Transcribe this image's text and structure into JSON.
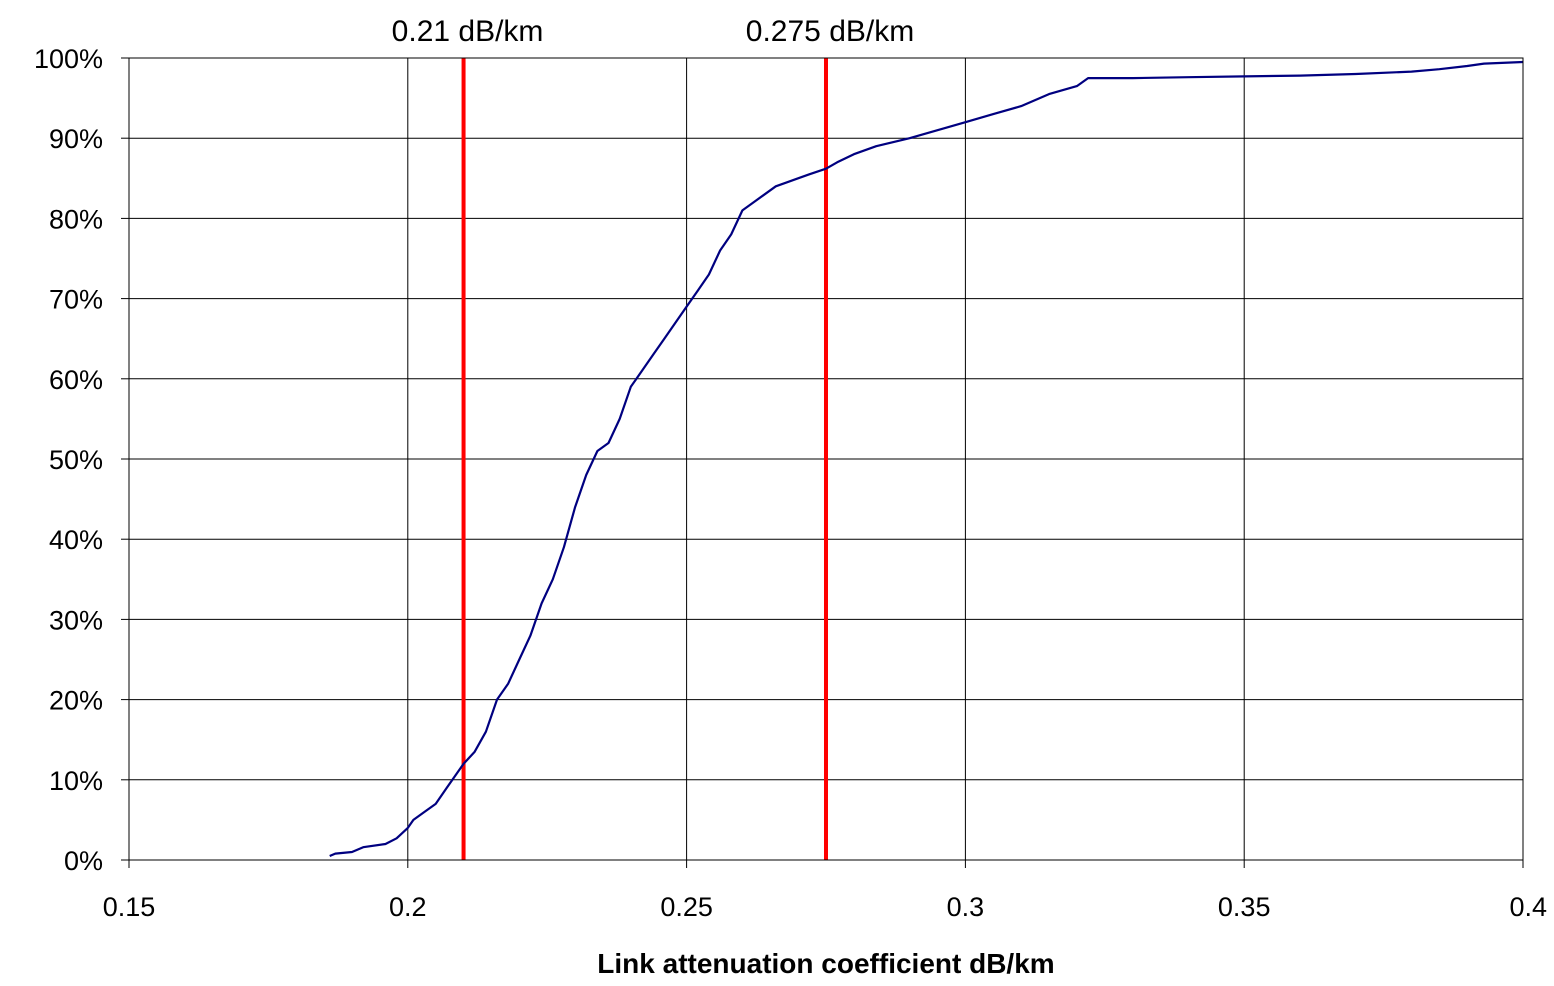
{
  "chart_data": {
    "type": "line",
    "title": "",
    "xlabel": "Link attenuation coefficient dB/km",
    "ylabel": "",
    "xlim": [
      0.15,
      0.4
    ],
    "ylim": [
      0,
      1
    ],
    "grid": true,
    "x_ticks": [
      0.15,
      0.2,
      0.25,
      0.3,
      0.35,
      0.4
    ],
    "x_tick_labels": [
      "0.15",
      "0.2",
      "0.25",
      "0.3",
      "0.35",
      "0.4"
    ],
    "y_ticks": [
      0,
      0.1,
      0.2,
      0.3,
      0.4,
      0.5,
      0.6,
      0.7,
      0.8,
      0.9,
      1.0
    ],
    "y_tick_labels": [
      "0%",
      "10%",
      "20%",
      "30%",
      "40%",
      "50%",
      "60%",
      "70%",
      "80%",
      "90%",
      "100%"
    ],
    "series": [
      {
        "color": "#000080",
        "x": [
          0.186,
          0.187,
          0.19,
          0.192,
          0.196,
          0.198,
          0.2,
          0.201,
          0.203,
          0.205,
          0.207,
          0.209,
          0.21,
          0.212,
          0.214,
          0.216,
          0.218,
          0.22,
          0.222,
          0.224,
          0.226,
          0.228,
          0.23,
          0.232,
          0.234,
          0.236,
          0.238,
          0.24,
          0.242,
          0.244,
          0.246,
          0.248,
          0.25,
          0.252,
          0.254,
          0.256,
          0.258,
          0.26,
          0.262,
          0.264,
          0.266,
          0.268,
          0.27,
          0.272,
          0.275,
          0.277,
          0.28,
          0.284,
          0.29,
          0.295,
          0.3,
          0.305,
          0.31,
          0.315,
          0.32,
          0.322,
          0.33,
          0.34,
          0.35,
          0.36,
          0.37,
          0.38,
          0.385,
          0.39,
          0.393,
          0.4
        ],
        "y": [
          0.005,
          0.008,
          0.01,
          0.016,
          0.02,
          0.027,
          0.04,
          0.05,
          0.06,
          0.07,
          0.09,
          0.11,
          0.12,
          0.135,
          0.16,
          0.2,
          0.22,
          0.25,
          0.28,
          0.32,
          0.35,
          0.39,
          0.44,
          0.48,
          0.51,
          0.52,
          0.55,
          0.59,
          0.61,
          0.63,
          0.65,
          0.67,
          0.69,
          0.71,
          0.73,
          0.76,
          0.78,
          0.81,
          0.82,
          0.83,
          0.84,
          0.845,
          0.85,
          0.855,
          0.862,
          0.87,
          0.88,
          0.89,
          0.9,
          0.91,
          0.92,
          0.93,
          0.94,
          0.955,
          0.965,
          0.975,
          0.975,
          0.976,
          0.977,
          0.978,
          0.98,
          0.983,
          0.986,
          0.99,
          0.993,
          0.995
        ]
      }
    ],
    "reference_lines": [
      {
        "x": 0.21,
        "label": "0.21 dB/km",
        "color": "#ff0000"
      },
      {
        "x": 0.275,
        "label": "0.275 dB/km",
        "color": "#ff0000"
      }
    ]
  }
}
